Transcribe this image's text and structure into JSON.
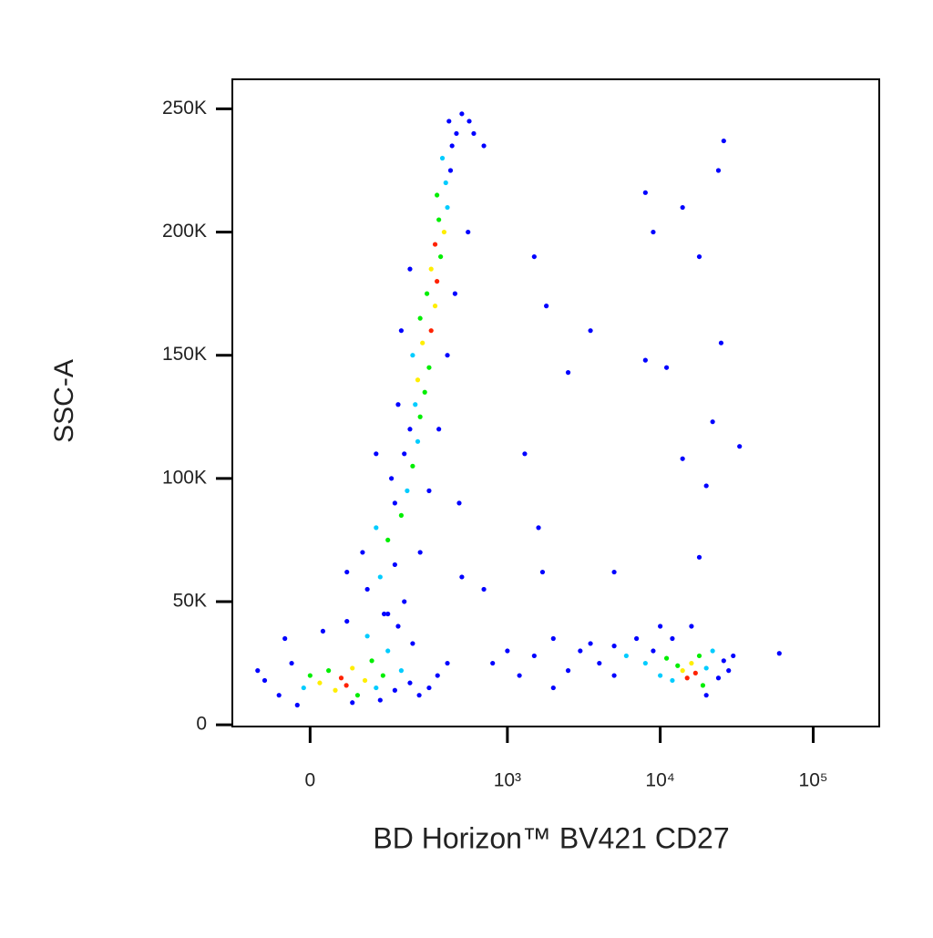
{
  "chart_data": {
    "type": "scatter",
    "x_label": "BD Horizon™ BV421 CD27",
    "y_label": "SSC-A",
    "xscale": "biexponential",
    "xlim": [
      -150,
      270000
    ],
    "ylim": [
      -700,
      262000
    ],
    "xticks": [
      0,
      {
        "value": 1000,
        "label": "10³"
      },
      {
        "value": 10000,
        "label": "10⁴"
      },
      {
        "value": 100000,
        "label": "10⁵"
      }
    ],
    "yticks": [
      0,
      {
        "value": 50000,
        "label": "50K"
      },
      {
        "value": 100000,
        "label": "100K"
      },
      {
        "value": 150000,
        "label": "150K"
      },
      {
        "value": 200000,
        "label": "200K"
      },
      {
        "value": 250000,
        "label": "250K"
      }
    ],
    "points": [
      [
        -76,
        18000,
        "#00f"
      ],
      [
        -50,
        12000,
        "#00f"
      ],
      [
        -29,
        25000,
        "#00f"
      ],
      [
        -10,
        15000,
        "#0cf"
      ],
      [
        0,
        20000,
        "#0e0"
      ],
      [
        15,
        17000,
        "#fe0"
      ],
      [
        29,
        22000,
        "#0e0"
      ],
      [
        40,
        14000,
        "#fe0"
      ],
      [
        50,
        19000,
        "#f20"
      ],
      [
        59,
        16000,
        "#f20"
      ],
      [
        70,
        23000,
        "#fe0"
      ],
      [
        80,
        12000,
        "#0e0"
      ],
      [
        95,
        18000,
        "#fe0"
      ],
      [
        110,
        26000,
        "#0e0"
      ],
      [
        120,
        15000,
        "#0cf"
      ],
      [
        137,
        20000,
        "#0e0"
      ],
      [
        150,
        30000,
        "#0cf"
      ],
      [
        170,
        14000,
        "#00f"
      ],
      [
        190,
        22000,
        "#0cf"
      ],
      [
        220,
        17000,
        "#00f"
      ],
      [
        256,
        12000,
        "#00f"
      ],
      [
        300,
        15000,
        "#00f"
      ],
      [
        -40,
        35000,
        "#00f"
      ],
      [
        20,
        38000,
        "#00f"
      ],
      [
        60,
        42000,
        "#00f"
      ],
      [
        100,
        36000,
        "#0cf"
      ],
      [
        140,
        45000,
        "#00f"
      ],
      [
        180,
        40000,
        "#00f"
      ],
      [
        230,
        33000,
        "#00f"
      ],
      [
        -20,
        8000,
        "#00f"
      ],
      [
        70,
        9000,
        "#00f"
      ],
      [
        130,
        10000,
        "#00f"
      ],
      [
        343,
        20000,
        "#00f"
      ],
      [
        400,
        25000,
        "#00f"
      ],
      [
        -90,
        22000,
        "#00f"
      ],
      [
        100,
        55000,
        "#00f"
      ],
      [
        130,
        60000,
        "#0cf"
      ],
      [
        170,
        65000,
        "#00f"
      ],
      [
        150,
        75000,
        "#0e0"
      ],
      [
        120,
        80000,
        "#0cf"
      ],
      [
        190,
        85000,
        "#0e0"
      ],
      [
        170,
        90000,
        "#00f"
      ],
      [
        210,
        95000,
        "#0cf"
      ],
      [
        160,
        100000,
        "#00f"
      ],
      [
        230,
        105000,
        "#0e0"
      ],
      [
        200,
        110000,
        "#00f"
      ],
      [
        250,
        115000,
        "#0cf"
      ],
      [
        220,
        120000,
        "#00f"
      ],
      [
        260,
        125000,
        "#0e0"
      ],
      [
        240,
        130000,
        "#0cf"
      ],
      [
        280,
        135000,
        "#0e0"
      ],
      [
        250,
        140000,
        "#fe0"
      ],
      [
        300,
        145000,
        "#0e0"
      ],
      [
        230,
        150000,
        "#0cf"
      ],
      [
        270,
        155000,
        "#fe0"
      ],
      [
        310,
        160000,
        "#f20"
      ],
      [
        260,
        165000,
        "#0e0"
      ],
      [
        330,
        170000,
        "#fe0"
      ],
      [
        290,
        175000,
        "#0e0"
      ],
      [
        340,
        180000,
        "#f20"
      ],
      [
        310,
        185000,
        "#fe0"
      ],
      [
        360,
        190000,
        "#0e0"
      ],
      [
        330,
        195000,
        "#f20"
      ],
      [
        380,
        200000,
        "#fe0"
      ],
      [
        350,
        205000,
        "#0e0"
      ],
      [
        400,
        210000,
        "#0cf"
      ],
      [
        340,
        215000,
        "#0e0"
      ],
      [
        390,
        220000,
        "#0cf"
      ],
      [
        420,
        225000,
        "#00f"
      ],
      [
        370,
        230000,
        "#0cf"
      ],
      [
        430,
        235000,
        "#00f"
      ],
      [
        460,
        240000,
        "#00f"
      ],
      [
        410,
        245000,
        "#00f"
      ],
      [
        500,
        248000,
        "#00f"
      ],
      [
        560,
        245000,
        "#00f"
      ],
      [
        600,
        240000,
        "#00f"
      ],
      [
        700,
        235000,
        "#00f"
      ],
      [
        190,
        160000,
        "#00f"
      ],
      [
        400,
        150000,
        "#00f"
      ],
      [
        180,
        130000,
        "#00f"
      ],
      [
        350,
        120000,
        "#00f"
      ],
      [
        120,
        110000,
        "#00f"
      ],
      [
        300,
        95000,
        "#00f"
      ],
      [
        90,
        70000,
        "#00f"
      ],
      [
        260,
        70000,
        "#00f"
      ],
      [
        60,
        62000,
        "#00f"
      ],
      [
        200,
        50000,
        "#00f"
      ],
      [
        150,
        45000,
        "#00f"
      ],
      [
        500,
        60000,
        "#00f"
      ],
      [
        450,
        175000,
        "#00f"
      ],
      [
        220,
        185000,
        "#00f"
      ],
      [
        550,
        200000,
        "#00f"
      ],
      [
        480,
        90000,
        "#00f"
      ],
      [
        700,
        55000,
        "#00f"
      ],
      [
        800,
        25000,
        "#00f"
      ],
      [
        1000,
        30000,
        "#00f"
      ],
      [
        1200,
        20000,
        "#00f"
      ],
      [
        1500,
        28000,
        "#00f"
      ],
      [
        2000,
        35000,
        "#00f"
      ],
      [
        2500,
        22000,
        "#00f"
      ],
      [
        3000,
        30000,
        "#00f"
      ],
      [
        3500,
        33000,
        "#00f"
      ],
      [
        4000,
        25000,
        "#00f"
      ],
      [
        5000,
        32000,
        "#00f"
      ],
      [
        6000,
        28000,
        "#0cf"
      ],
      [
        7000,
        35000,
        "#00f"
      ],
      [
        8000,
        25000,
        "#0cf"
      ],
      [
        9000,
        30000,
        "#00f"
      ],
      [
        10000,
        20000,
        "#0cf"
      ],
      [
        11000,
        27000,
        "#0e0"
      ],
      [
        12000,
        18000,
        "#0cf"
      ],
      [
        13000,
        24000,
        "#0e0"
      ],
      [
        14000,
        22000,
        "#fe0"
      ],
      [
        15000,
        19000,
        "#f20"
      ],
      [
        16000,
        25000,
        "#fe0"
      ],
      [
        17000,
        21000,
        "#f20"
      ],
      [
        18000,
        28000,
        "#0e0"
      ],
      [
        19000,
        16000,
        "#0e0"
      ],
      [
        20000,
        23000,
        "#0cf"
      ],
      [
        22000,
        30000,
        "#0cf"
      ],
      [
        24000,
        19000,
        "#00f"
      ],
      [
        26000,
        26000,
        "#00f"
      ],
      [
        28000,
        22000,
        "#00f"
      ],
      [
        12000,
        35000,
        "#00f"
      ],
      [
        16000,
        40000,
        "#00f"
      ],
      [
        20000,
        12000,
        "#00f"
      ],
      [
        10000,
        40000,
        "#00f"
      ],
      [
        30000,
        28000,
        "#00f"
      ],
      [
        60000,
        29000,
        "#00f"
      ],
      [
        5000,
        20000,
        "#00f"
      ],
      [
        2000,
        15000,
        "#00f"
      ],
      [
        1500,
        190000,
        "#00f"
      ],
      [
        1800,
        170000,
        "#00f"
      ],
      [
        3500,
        160000,
        "#00f"
      ],
      [
        2500,
        143000,
        "#00f"
      ],
      [
        8000,
        216000,
        "#00f"
      ],
      [
        9000,
        200000,
        "#00f"
      ],
      [
        14000,
        210000,
        "#00f"
      ],
      [
        18000,
        190000,
        "#00f"
      ],
      [
        24000,
        225000,
        "#00f"
      ],
      [
        26000,
        237000,
        "#00f"
      ],
      [
        25000,
        155000,
        "#00f"
      ],
      [
        22000,
        123000,
        "#00f"
      ],
      [
        33000,
        113000,
        "#00f"
      ],
      [
        14000,
        108000,
        "#00f"
      ],
      [
        20000,
        97000,
        "#00f"
      ],
      [
        8000,
        148000,
        "#00f"
      ],
      [
        1300,
        110000,
        "#00f"
      ],
      [
        1600,
        80000,
        "#00f"
      ],
      [
        1700,
        62000,
        "#00f"
      ],
      [
        5000,
        62000,
        "#00f"
      ],
      [
        18000,
        68000,
        "#00f"
      ],
      [
        11000,
        145000,
        "#00f"
      ]
    ]
  }
}
